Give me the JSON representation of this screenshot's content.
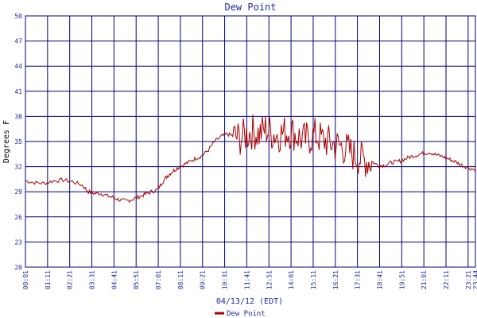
{
  "chart_data": {
    "type": "line",
    "title": "Dew Point",
    "xlabel": "04/13/12 (EDT)",
    "ylabel": "Degrees F",
    "ylim": [
      20,
      50
    ],
    "yticks": [
      "20",
      "23",
      "26",
      "29",
      "32",
      "35",
      "38",
      "41",
      "44",
      "47",
      "50"
    ],
    "xticks": [
      "00:01",
      "01:11",
      "02:21",
      "03:31",
      "04:41",
      "05:51",
      "07:01",
      "08:11",
      "09:21",
      "10:31",
      "11:41",
      "12:51",
      "14:01",
      "15:11",
      "16:21",
      "17:31",
      "18:41",
      "19:51",
      "21:01",
      "22:11",
      "23:21",
      "23:44"
    ],
    "grid": true,
    "legend_position": "bottom-center",
    "colors": {
      "series": "#aa0000",
      "grid": "#00007a",
      "axis_text": "#1f2aa0"
    },
    "series": [
      {
        "name": "Dew Point",
        "x_minutes_anchor_note": "x values are clock times (HH:MM) on 04/13/12",
        "x": [
          "00:01",
          "00:30",
          "01:00",
          "01:30",
          "02:00",
          "02:30",
          "03:00",
          "03:20",
          "03:40",
          "04:00",
          "04:20",
          "04:40",
          "05:00",
          "05:20",
          "05:40",
          "06:00",
          "06:20",
          "06:40",
          "07:00",
          "07:15",
          "07:30",
          "07:45",
          "08:00",
          "08:20",
          "08:40",
          "09:00",
          "09:20",
          "09:40",
          "10:00",
          "10:20",
          "10:40",
          "11:00",
          "11:20",
          "11:40",
          "12:00",
          "12:20",
          "12:40",
          "13:00",
          "13:20",
          "13:40",
          "14:00",
          "14:20",
          "14:40",
          "15:00",
          "15:20",
          "15:40",
          "16:00",
          "16:20",
          "16:40",
          "17:00",
          "17:20",
          "17:40",
          "18:00",
          "18:20",
          "18:40",
          "19:00",
          "19:20",
          "19:40",
          "20:00",
          "20:20",
          "20:40",
          "21:00",
          "21:20",
          "21:40",
          "22:00",
          "22:20",
          "22:40",
          "23:00",
          "23:20",
          "23:44"
        ],
        "values": [
          30.3,
          30.1,
          30.0,
          30.3,
          30.4,
          30.2,
          29.8,
          29.0,
          28.8,
          28.8,
          28.5,
          28.3,
          28.0,
          27.9,
          28.1,
          28.4,
          28.7,
          29.0,
          29.3,
          30.2,
          30.9,
          31.4,
          31.8,
          32.2,
          32.6,
          33.0,
          33.3,
          34.0,
          35.0,
          35.6,
          35.9,
          35.6,
          35.4,
          35.8,
          36.2,
          35.9,
          36.5,
          36.0,
          35.8,
          36.1,
          36.2,
          35.7,
          35.2,
          35.4,
          35.8,
          35.2,
          34.9,
          34.6,
          34.4,
          34.0,
          33.4,
          33.0,
          32.7,
          32.5,
          32.1,
          32.2,
          32.5,
          32.6,
          32.9,
          33.2,
          33.4,
          33.6,
          33.7,
          33.4,
          33.2,
          32.9,
          32.6,
          32.2,
          31.9,
          31.6
        ]
      }
    ]
  }
}
